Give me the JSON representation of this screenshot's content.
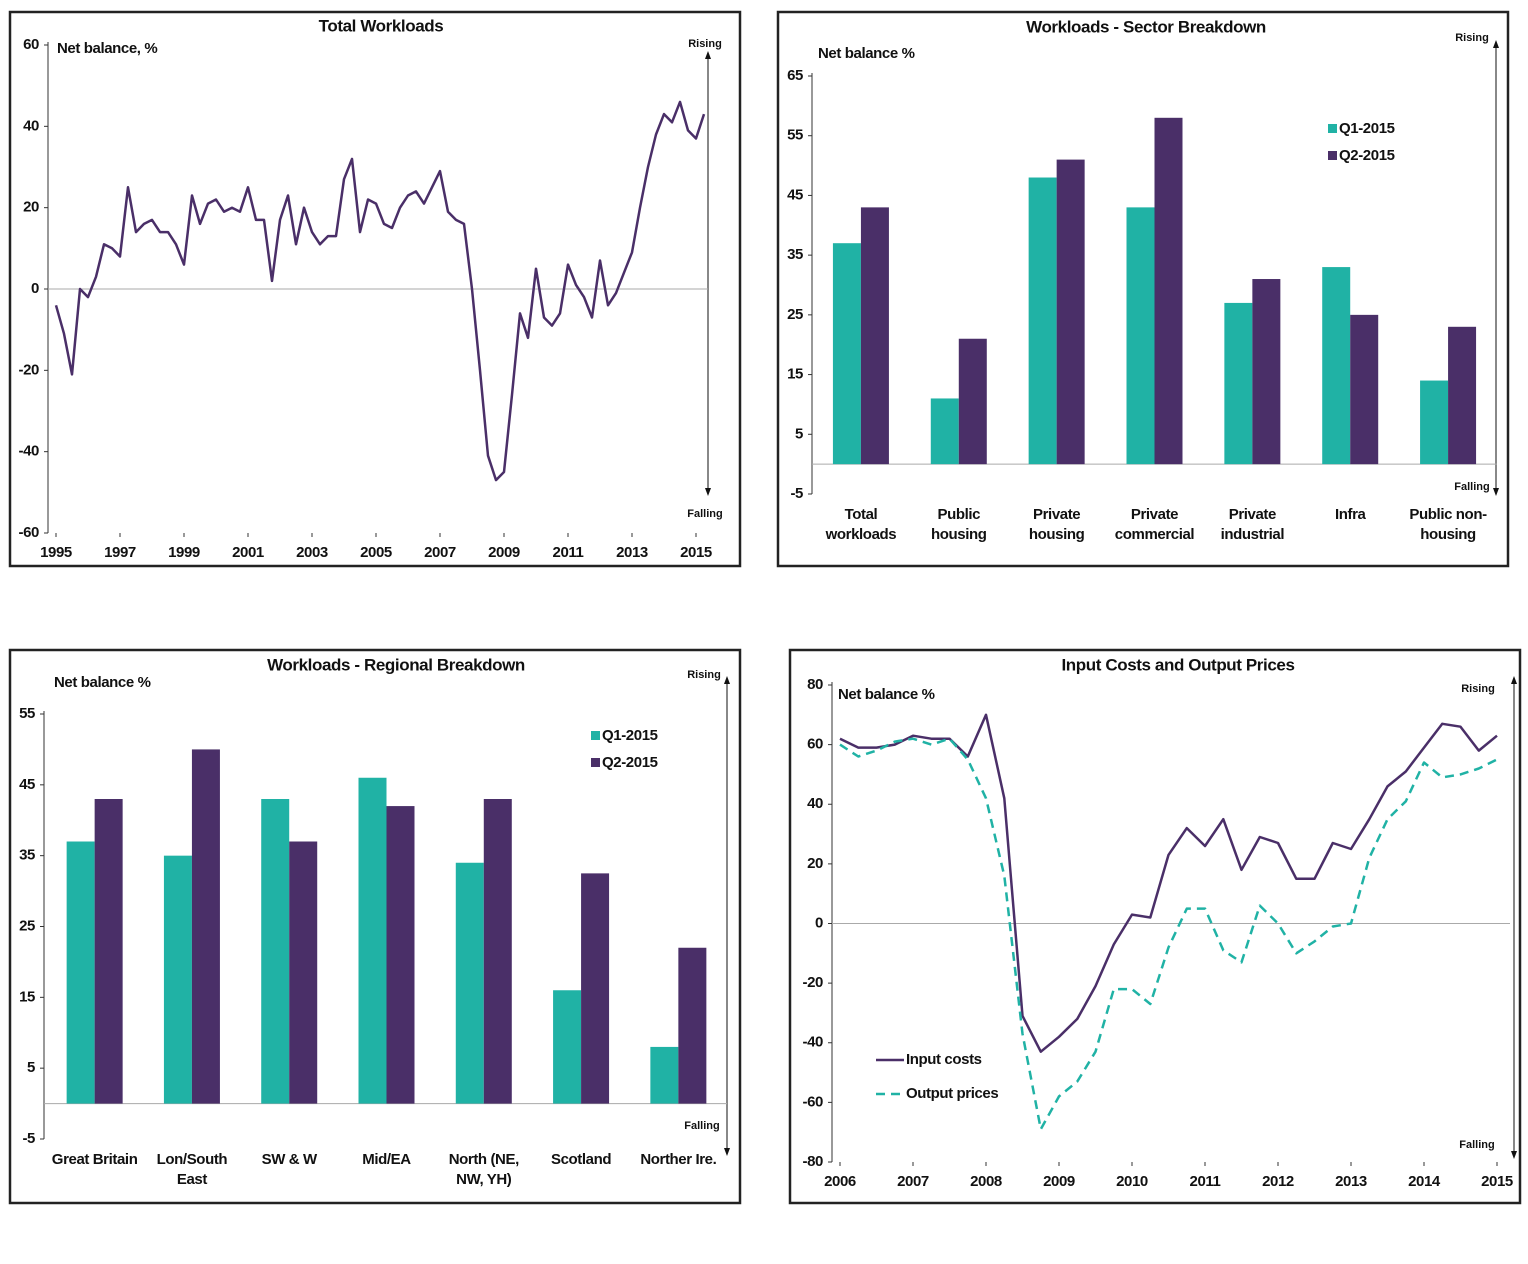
{
  "chart_data": [
    {
      "type": "line",
      "title": "Total Workloads",
      "ylabel": "Net balance, %",
      "annotations": [
        "Rising",
        "Falling"
      ],
      "color": "#4a2f68",
      "x": [
        1995,
        1995.25,
        1995.5,
        1995.75,
        1996,
        1996.25,
        1996.5,
        1996.75,
        1997,
        1997.25,
        1997.5,
        1997.75,
        1998,
        1998.25,
        1998.5,
        1998.75,
        1999,
        1999.25,
        1999.5,
        1999.75,
        2000,
        2000.25,
        2000.5,
        2000.75,
        2001,
        2001.25,
        2001.5,
        2001.75,
        2002,
        2002.25,
        2002.5,
        2002.75,
        2003,
        2003.25,
        2003.5,
        2003.75,
        2004,
        2004.25,
        2004.5,
        2004.75,
        2005,
        2005.25,
        2005.5,
        2005.75,
        2006,
        2006.25,
        2006.5,
        2006.75,
        2007,
        2007.25,
        2007.5,
        2007.75,
        2008,
        2008.25,
        2008.5,
        2008.75,
        2009,
        2009.25,
        2009.5,
        2009.75,
        2010,
        2010.25,
        2010.5,
        2010.75,
        2011,
        2011.25,
        2011.5,
        2011.75,
        2012,
        2012.25,
        2012.5,
        2012.75,
        2013,
        2013.25,
        2013.5,
        2013.75,
        2014,
        2014.25,
        2014.5,
        2014.75,
        2015,
        2015.25
      ],
      "values": [
        -4,
        -11,
        -21,
        0,
        -2,
        3,
        11,
        10,
        8,
        25,
        14,
        16,
        17,
        14,
        14,
        11,
        6,
        23,
        16,
        21,
        22,
        19,
        20,
        19,
        25,
        17,
        17,
        2,
        17,
        23,
        11,
        20,
        14,
        11,
        13,
        13,
        27,
        32,
        14,
        22,
        21,
        16,
        15,
        20,
        23,
        24,
        21,
        25,
        29,
        19,
        17,
        16,
        0,
        -20,
        -41,
        -47,
        -45,
        -26,
        -6,
        -12,
        5,
        -7,
        -9,
        -6,
        6,
        1,
        -2,
        -7,
        7,
        -4,
        -1,
        4,
        9,
        20,
        30,
        38,
        43,
        41,
        46,
        39,
        37,
        43
      ],
      "xlim": [
        1995,
        2015.5
      ],
      "xticks": [
        1995,
        1997,
        1999,
        2001,
        2003,
        2005,
        2007,
        2009,
        2011,
        2013,
        2015
      ],
      "ylim": [
        -60,
        60
      ],
      "yticks": [
        -60,
        -40,
        -20,
        0,
        20,
        40,
        60
      ]
    },
    {
      "type": "bar",
      "title": "Workloads - Sector Breakdown",
      "ylabel": "Net balance %",
      "annotations": [
        "Rising",
        "Falling"
      ],
      "categories": [
        "Total workloads",
        "Public housing",
        "Private housing",
        "Private commercial",
        "Private industrial",
        "Infra",
        "Public non-housing"
      ],
      "series": [
        {
          "name": "Q1-2015",
          "color": "#20b2a5",
          "values": [
            37,
            11,
            48,
            43,
            27,
            33,
            14
          ]
        },
        {
          "name": "Q2-2015",
          "color": "#4a2f68",
          "values": [
            43,
            21,
            51,
            58,
            31,
            25,
            23
          ]
        }
      ],
      "ylim": [
        -5,
        65
      ],
      "yticks": [
        -5,
        5,
        15,
        25,
        35,
        45,
        55,
        65
      ]
    },
    {
      "type": "bar",
      "title": "Workloads - Regional Breakdown",
      "ylabel": "Net balance %",
      "annotations": [
        "Rising",
        "Falling"
      ],
      "categories": [
        "Great Britain",
        "Lon/South East",
        "SW & W",
        "Mid/EA",
        "North (NE, NW, YH)",
        "Scotland",
        "Norther Ire."
      ],
      "series": [
        {
          "name": "Q1-2015",
          "color": "#20b2a5",
          "values": [
            37,
            35,
            43,
            46,
            34,
            16,
            8
          ]
        },
        {
          "name": "Q2-2015",
          "color": "#4a2f68",
          "values": [
            43,
            50,
            37,
            42,
            43,
            32.5,
            22
          ]
        }
      ],
      "ylim": [
        -5,
        55
      ],
      "yticks": [
        -5,
        5,
        15,
        25,
        35,
        45,
        55
      ]
    },
    {
      "type": "line",
      "title": "Input Costs and Output Prices",
      "ylabel": "Net balance %",
      "annotations": [
        "Rising",
        "Falling"
      ],
      "x": [
        2006,
        2006.25,
        2006.5,
        2006.75,
        2007,
        2007.25,
        2007.5,
        2007.75,
        2008,
        2008.25,
        2008.5,
        2008.75,
        2009,
        2009.25,
        2009.5,
        2009.75,
        2010,
        2010.25,
        2010.5,
        2010.75,
        2011,
        2011.25,
        2011.5,
        2011.75,
        2012,
        2012.25,
        2012.5,
        2012.75,
        2013,
        2013.25,
        2013.5,
        2013.75,
        2014,
        2014.25,
        2014.5,
        2014.75,
        2015
      ],
      "series": [
        {
          "name": "Input costs",
          "color": "#4a2f68",
          "style": "solid",
          "values": [
            62,
            59,
            59,
            60,
            63,
            62,
            62,
            56,
            70,
            42,
            -31,
            -43,
            -38,
            -32,
            -21,
            -7,
            3,
            2,
            23,
            32,
            26,
            35,
            18,
            29,
            27,
            15,
            15,
            27,
            25,
            35,
            46,
            51,
            59,
            67,
            66,
            58,
            63
          ]
        },
        {
          "name": "Output prices",
          "color": "#20b2a5",
          "style": "dashed",
          "values": [
            60,
            56,
            58,
            61,
            62,
            60,
            62,
            55,
            42,
            16,
            -37,
            -69,
            -58,
            -53,
            -43,
            -22,
            -22,
            -27,
            -8,
            5,
            5,
            -9,
            -13,
            6,
            0,
            -10,
            -6,
            -1,
            0,
            22,
            35,
            41,
            54,
            49,
            50,
            52,
            55
          ]
        }
      ],
      "xlim": [
        2006,
        2015
      ],
      "xticks": [
        2006,
        2007,
        2008,
        2009,
        2010,
        2011,
        2012,
        2013,
        2014,
        2015
      ],
      "ylim": [
        -80,
        80
      ],
      "yticks": [
        -80,
        -60,
        -40,
        -20,
        0,
        20,
        40,
        60,
        80
      ]
    }
  ]
}
